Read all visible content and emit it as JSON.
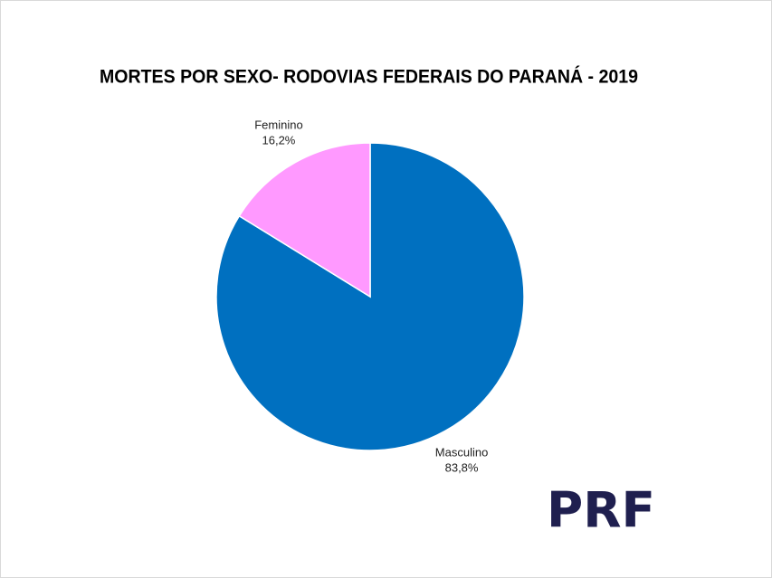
{
  "chart_data": {
    "type": "pie",
    "title": "MORTES POR SEXO- RODOVIAS FEDERAIS DO PARANÁ - 2019",
    "categories": [
      "Masculino",
      "Feminino"
    ],
    "values": [
      83.8,
      16.2
    ],
    "value_labels": [
      "83,8%",
      "16,2%"
    ],
    "colors": [
      "#0070c0",
      "#ff99ff"
    ]
  },
  "logo": "PRF"
}
